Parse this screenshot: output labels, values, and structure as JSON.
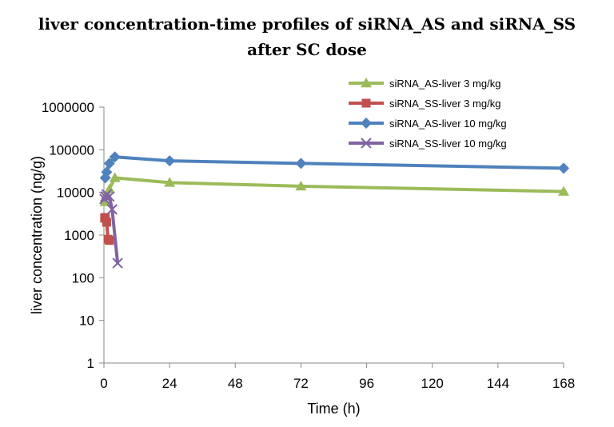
{
  "chart_data": {
    "type": "line",
    "title": "liver concentration-time profiles of siRNA_AS and siRNA_SS after SC dose",
    "title_lines": [
      "liver concentration-time profiles of siRNA_AS and siRNA_SS",
      "after SC dose"
    ],
    "xlabel": "Time (h)",
    "ylabel": "liver concentration (ng/g)",
    "xlim": [
      0,
      168
    ],
    "ylim": [
      1,
      1000000
    ],
    "yscale": "log",
    "x_ticks": [
      0,
      24,
      48,
      72,
      96,
      120,
      144,
      168
    ],
    "x_tick_labels": [
      "0",
      "24",
      "48",
      "72",
      "96",
      "120",
      "144",
      "168"
    ],
    "y_ticks": [
      1,
      10,
      100,
      1000,
      10000,
      100000,
      1000000
    ],
    "y_tick_labels": [
      "1",
      "10",
      "100",
      "1000",
      "10000",
      "100000",
      "1000000"
    ],
    "grid": false,
    "legend_position": "top-right",
    "series": [
      {
        "name": "siRNA_AS-liver  3 mg/kg",
        "color": "#9bbb59",
        "marker": "triangle",
        "points": [
          [
            0.5,
            6000
          ],
          [
            1,
            9000
          ],
          [
            2,
            12000
          ],
          [
            4,
            22000
          ],
          [
            24,
            17000
          ],
          [
            72,
            14000
          ],
          [
            168,
            10500
          ]
        ]
      },
      {
        "name": "siRNA_SS-liver  3 mg/kg",
        "color": "#c0504d",
        "marker": "square",
        "points": [
          [
            0.25,
            2500
          ],
          [
            0.5,
            2600
          ],
          [
            1,
            2000
          ],
          [
            1.5,
            800
          ],
          [
            2,
            750
          ]
        ]
      },
      {
        "name": "siRNA_AS-liver  10 mg/kg",
        "color": "#4f81bd",
        "marker": "diamond",
        "points": [
          [
            0.5,
            22000
          ],
          [
            1,
            30000
          ],
          [
            2,
            48000
          ],
          [
            4,
            68000
          ],
          [
            24,
            55000
          ],
          [
            72,
            48000
          ],
          [
            168,
            37000
          ]
        ]
      },
      {
        "name": "siRNA_SS-liver  10 mg/kg",
        "color": "#8064a2",
        "marker": "x",
        "points": [
          [
            0.25,
            7000
          ],
          [
            0.5,
            8000
          ],
          [
            1,
            9000
          ],
          [
            2,
            8000
          ],
          [
            3,
            4000
          ],
          [
            5,
            220
          ]
        ]
      }
    ]
  }
}
